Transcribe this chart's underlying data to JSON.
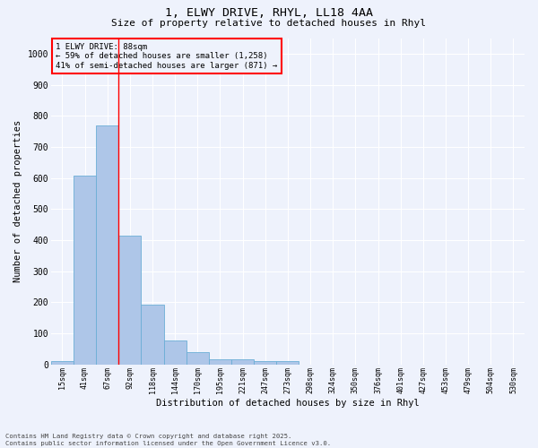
{
  "title_line1": "1, ELWY DRIVE, RHYL, LL18 4AA",
  "title_line2": "Size of property relative to detached houses in Rhyl",
  "xlabel": "Distribution of detached houses by size in Rhyl",
  "ylabel": "Number of detached properties",
  "categories": [
    "15sqm",
    "41sqm",
    "67sqm",
    "92sqm",
    "118sqm",
    "144sqm",
    "170sqm",
    "195sqm",
    "221sqm",
    "247sqm",
    "273sqm",
    "298sqm",
    "324sqm",
    "350sqm",
    "376sqm",
    "401sqm",
    "427sqm",
    "453sqm",
    "479sqm",
    "504sqm",
    "530sqm"
  ],
  "values": [
    10,
    608,
    770,
    413,
    192,
    78,
    40,
    15,
    15,
    10,
    10,
    0,
    0,
    0,
    0,
    0,
    0,
    0,
    0,
    0,
    0
  ],
  "bar_color": "#aec6e8",
  "bar_edge_color": "#6baed6",
  "red_line_x": 2.5,
  "annotation_title": "1 ELWY DRIVE: 88sqm",
  "annotation_line1": "← 59% of detached houses are smaller (1,258)",
  "annotation_line2": "41% of semi-detached houses are larger (871) →",
  "ylim": [
    0,
    1050
  ],
  "yticks": [
    0,
    100,
    200,
    300,
    400,
    500,
    600,
    700,
    800,
    900,
    1000
  ],
  "background_color": "#eef2fc",
  "grid_color": "#ffffff",
  "footer_line1": "Contains HM Land Registry data © Crown copyright and database right 2025.",
  "footer_line2": "Contains public sector information licensed under the Open Government Licence v3.0."
}
